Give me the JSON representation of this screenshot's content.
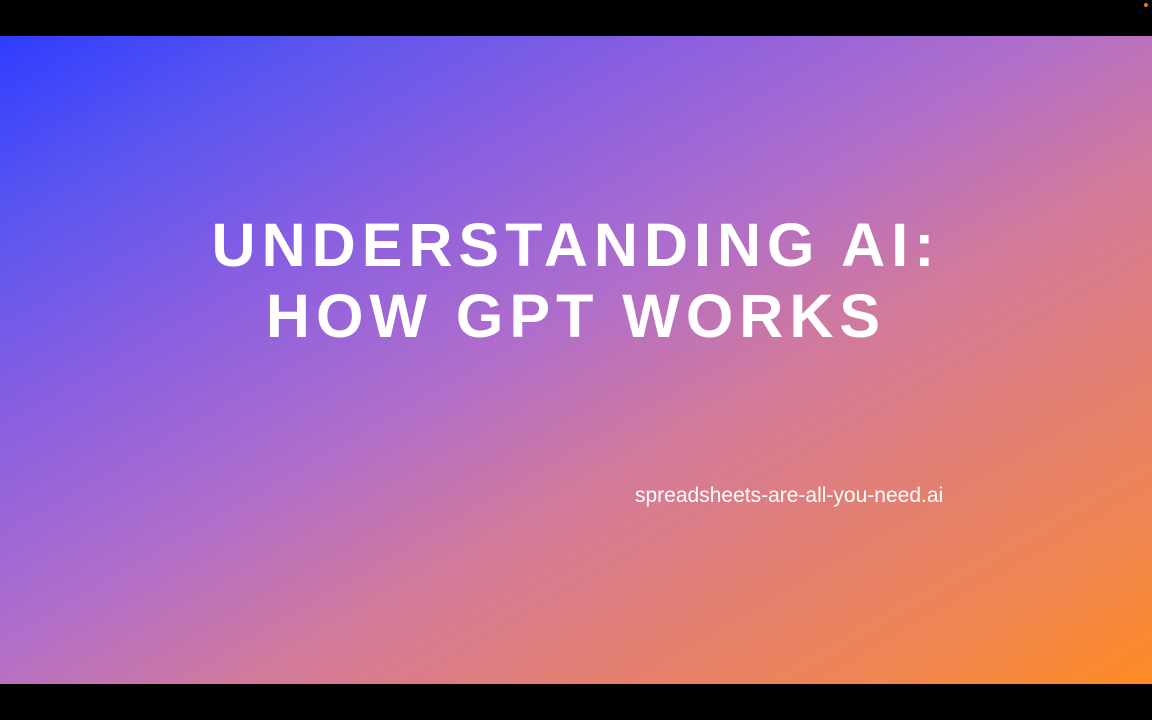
{
  "slide": {
    "title_line_1": "UNDERSTANDING AI:",
    "title_line_2": "HOW GPT WORKS",
    "url": "spreadsheets-are-all-you-need.ai"
  },
  "colors": {
    "gradient_start": "#2f3cff",
    "gradient_mid": "#b06ecb",
    "gradient_end": "#fe8a22",
    "text": "#ffffff",
    "letterbox": "#000000",
    "status_dot": "#e8731f"
  }
}
